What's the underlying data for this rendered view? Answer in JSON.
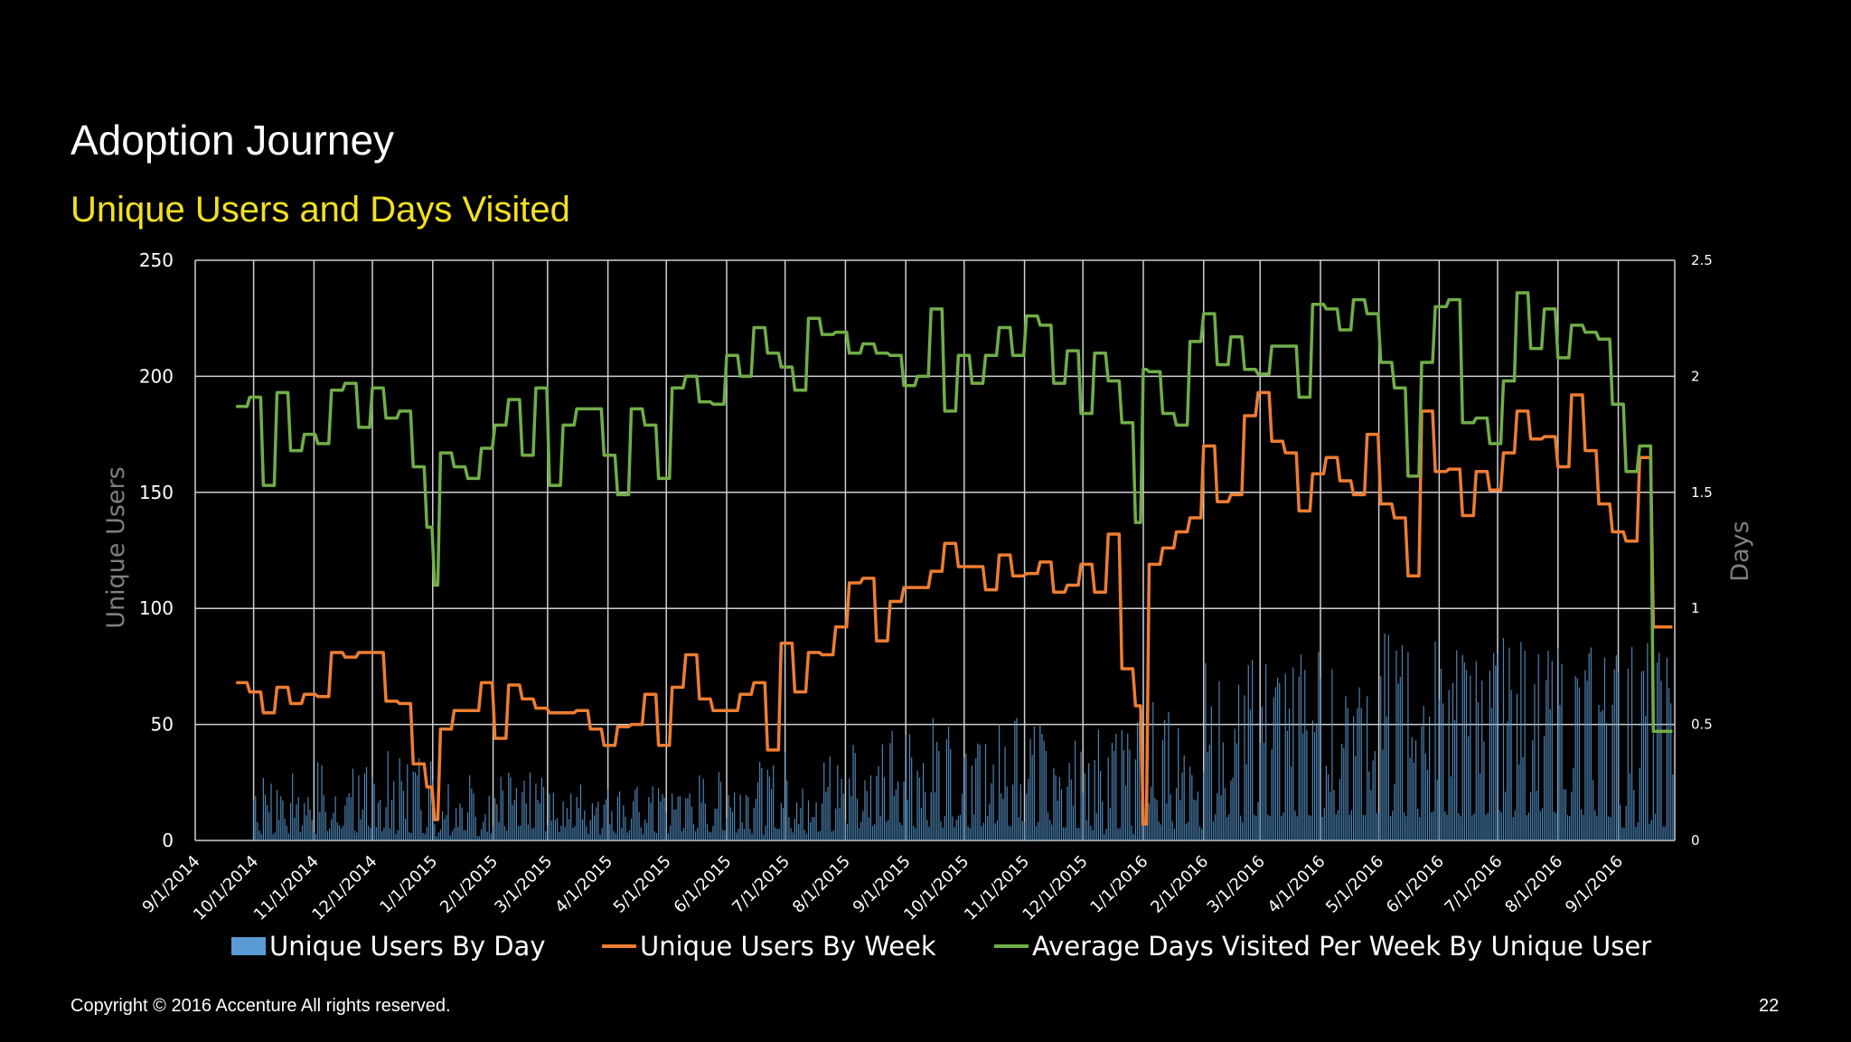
{
  "slide": {
    "title": "Adoption Journey",
    "subtitle": "Unique Users and Days Visited",
    "footer": "Copyright © 2016 Accenture  All rights reserved.",
    "page_number": "22"
  },
  "colors": {
    "background": "#000000",
    "title": "#ffffff",
    "subtitle": "#f2e11d",
    "grid": "#cfcfcf",
    "axis_title": "#7f7f7f",
    "bars": "#5b9bd5",
    "weekly_line": "#ed7d31",
    "days_line": "#70ad47"
  },
  "chart_data": {
    "type": "bar",
    "secondary_type": "line",
    "x_tick_labels": [
      "9/1/2014",
      "10/1/2014",
      "11/1/2014",
      "12/1/2014",
      "1/1/2015",
      "2/1/2015",
      "3/1/2015",
      "4/1/2015",
      "5/1/2015",
      "6/1/2015",
      "7/1/2015",
      "8/1/2015",
      "9/1/2015",
      "10/1/2015",
      "11/1/2015",
      "12/1/2015",
      "1/1/2016",
      "2/1/2016",
      "3/1/2016",
      "4/1/2016",
      "5/1/2016",
      "6/1/2016",
      "7/1/2016",
      "8/1/2016",
      "9/1/2016"
    ],
    "x_range": [
      "2014-09-01",
      "2016-09-30"
    ],
    "y_left": {
      "label": "Unique Users",
      "ylim": [
        0,
        250
      ],
      "ticks": [
        "0",
        "50",
        "100",
        "150",
        "200",
        "250"
      ]
    },
    "y_right": {
      "label": "Days",
      "ylim": [
        0,
        2.5
      ],
      "ticks": [
        "0",
        "0.5",
        "1",
        "1.5",
        "2",
        "2.5"
      ]
    },
    "grid": true,
    "legend_position": "bottom",
    "legend": [
      "Unique Users By Day",
      "Unique Users By Week",
      "Average Days Visited Per Week By Unique User"
    ],
    "series": [
      {
        "name": "Unique Users By Day",
        "type": "bar",
        "axis": "left",
        "monthly_range": [
          {
            "month": "2014-09",
            "min": 0,
            "max": 0
          },
          {
            "month": "2014-10",
            "min": 5,
            "max": 30
          },
          {
            "month": "2014-11",
            "min": 5,
            "max": 36
          },
          {
            "month": "2014-12",
            "min": 5,
            "max": 40
          },
          {
            "month": "2015-01",
            "min": 3,
            "max": 30
          },
          {
            "month": "2015-02",
            "min": 5,
            "max": 30
          },
          {
            "month": "2015-03",
            "min": 5,
            "max": 28
          },
          {
            "month": "2015-04",
            "min": 5,
            "max": 24
          },
          {
            "month": "2015-05",
            "min": 5,
            "max": 30
          },
          {
            "month": "2015-06",
            "min": 5,
            "max": 35
          },
          {
            "month": "2015-07",
            "min": 5,
            "max": 40
          },
          {
            "month": "2015-08",
            "min": 10,
            "max": 50
          },
          {
            "month": "2015-09",
            "min": 10,
            "max": 55
          },
          {
            "month": "2015-10",
            "min": 10,
            "max": 55
          },
          {
            "month": "2015-11",
            "min": 10,
            "max": 58
          },
          {
            "month": "2015-12",
            "min": 5,
            "max": 52
          },
          {
            "month": "2016-01",
            "min": 10,
            "max": 72
          },
          {
            "month": "2016-02",
            "min": 15,
            "max": 80
          },
          {
            "month": "2016-03",
            "min": 20,
            "max": 85
          },
          {
            "month": "2016-04",
            "min": 20,
            "max": 88
          },
          {
            "month": "2016-05",
            "min": 20,
            "max": 90
          },
          {
            "month": "2016-06",
            "min": 20,
            "max": 85
          },
          {
            "month": "2016-07",
            "min": 20,
            "max": 88
          },
          {
            "month": "2016-08",
            "min": 20,
            "max": 86
          },
          {
            "month": "2016-09",
            "min": 10,
            "max": 88
          }
        ]
      },
      {
        "name": "Unique Users By Week",
        "type": "line",
        "axis": "left",
        "points": [
          [
            "2014-09-22",
            68
          ],
          [
            "2014-09-29",
            64
          ],
          [
            "2014-10-06",
            55
          ],
          [
            "2014-10-13",
            66
          ],
          [
            "2014-10-20",
            59
          ],
          [
            "2014-10-27",
            63
          ],
          [
            "2014-11-03",
            62
          ],
          [
            "2014-11-10",
            81
          ],
          [
            "2014-11-17",
            79
          ],
          [
            "2014-11-24",
            81
          ],
          [
            "2014-12-01",
            81
          ],
          [
            "2014-12-08",
            60
          ],
          [
            "2014-12-15",
            59
          ],
          [
            "2014-12-22",
            33
          ],
          [
            "2014-12-29",
            23
          ],
          [
            "2015-01-02",
            9
          ],
          [
            "2015-01-05",
            48
          ],
          [
            "2015-01-12",
            56
          ],
          [
            "2015-01-19",
            56
          ],
          [
            "2015-01-26",
            68
          ],
          [
            "2015-02-02",
            44
          ],
          [
            "2015-02-09",
            67
          ],
          [
            "2015-02-16",
            61
          ],
          [
            "2015-02-23",
            57
          ],
          [
            "2015-03-02",
            55
          ],
          [
            "2015-03-09",
            55
          ],
          [
            "2015-03-16",
            56
          ],
          [
            "2015-03-23",
            48
          ],
          [
            "2015-03-30",
            41
          ],
          [
            "2015-04-06",
            49
          ],
          [
            "2015-04-13",
            50
          ],
          [
            "2015-04-20",
            63
          ],
          [
            "2015-04-27",
            41
          ],
          [
            "2015-05-04",
            66
          ],
          [
            "2015-05-11",
            80
          ],
          [
            "2015-05-18",
            61
          ],
          [
            "2015-05-25",
            56
          ],
          [
            "2015-06-01",
            56
          ],
          [
            "2015-06-08",
            63
          ],
          [
            "2015-06-15",
            68
          ],
          [
            "2015-06-22",
            39
          ],
          [
            "2015-06-29",
            85
          ],
          [
            "2015-07-06",
            64
          ],
          [
            "2015-07-13",
            81
          ],
          [
            "2015-07-20",
            80
          ],
          [
            "2015-07-27",
            92
          ],
          [
            "2015-08-03",
            111
          ],
          [
            "2015-08-10",
            113
          ],
          [
            "2015-08-17",
            86
          ],
          [
            "2015-08-24",
            103
          ],
          [
            "2015-08-31",
            109
          ],
          [
            "2015-09-07",
            109
          ],
          [
            "2015-09-14",
            116
          ],
          [
            "2015-09-21",
            128
          ],
          [
            "2015-09-28",
            118
          ],
          [
            "2015-10-05",
            118
          ],
          [
            "2015-10-12",
            108
          ],
          [
            "2015-10-19",
            123
          ],
          [
            "2015-10-26",
            114
          ],
          [
            "2015-11-02",
            115
          ],
          [
            "2015-11-09",
            120
          ],
          [
            "2015-11-16",
            107
          ],
          [
            "2015-11-23",
            110
          ],
          [
            "2015-11-30",
            119
          ],
          [
            "2015-12-07",
            107
          ],
          [
            "2015-12-14",
            132
          ],
          [
            "2015-12-21",
            74
          ],
          [
            "2015-12-28",
            58
          ],
          [
            "2016-01-01",
            7
          ],
          [
            "2016-01-04",
            119
          ],
          [
            "2016-01-11",
            126
          ],
          [
            "2016-01-18",
            133
          ],
          [
            "2016-01-25",
            139
          ],
          [
            "2016-02-01",
            170
          ],
          [
            "2016-02-08",
            146
          ],
          [
            "2016-02-15",
            149
          ],
          [
            "2016-02-22",
            183
          ],
          [
            "2016-02-29",
            193
          ],
          [
            "2016-03-07",
            172
          ],
          [
            "2016-03-14",
            167
          ],
          [
            "2016-03-21",
            142
          ],
          [
            "2016-03-28",
            158
          ],
          [
            "2016-04-04",
            165
          ],
          [
            "2016-04-11",
            155
          ],
          [
            "2016-04-18",
            149
          ],
          [
            "2016-04-25",
            175
          ],
          [
            "2016-05-02",
            145
          ],
          [
            "2016-05-09",
            139
          ],
          [
            "2016-05-16",
            114
          ],
          [
            "2016-05-23",
            185
          ],
          [
            "2016-05-30",
            159
          ],
          [
            "2016-06-06",
            160
          ],
          [
            "2016-06-13",
            140
          ],
          [
            "2016-06-20",
            159
          ],
          [
            "2016-06-27",
            151
          ],
          [
            "2016-07-04",
            167
          ],
          [
            "2016-07-11",
            185
          ],
          [
            "2016-07-18",
            173
          ],
          [
            "2016-07-25",
            174
          ],
          [
            "2016-08-01",
            161
          ],
          [
            "2016-08-08",
            192
          ],
          [
            "2016-08-15",
            168
          ],
          [
            "2016-08-22",
            145
          ],
          [
            "2016-08-29",
            133
          ],
          [
            "2016-09-05",
            129
          ],
          [
            "2016-09-12",
            165
          ],
          [
            "2016-09-19",
            92
          ],
          [
            "2016-09-26",
            92
          ]
        ]
      },
      {
        "name": "Average Days Visited Per Week By Unique User",
        "type": "line",
        "axis": "right",
        "points": [
          [
            "2014-09-22",
            1.87
          ],
          [
            "2014-09-29",
            1.91
          ],
          [
            "2014-10-06",
            1.53
          ],
          [
            "2014-10-13",
            1.93
          ],
          [
            "2014-10-20",
            1.68
          ],
          [
            "2014-10-27",
            1.75
          ],
          [
            "2014-11-03",
            1.71
          ],
          [
            "2014-11-10",
            1.94
          ],
          [
            "2014-11-17",
            1.97
          ],
          [
            "2014-11-24",
            1.78
          ],
          [
            "2014-12-01",
            1.95
          ],
          [
            "2014-12-08",
            1.82
          ],
          [
            "2014-12-15",
            1.85
          ],
          [
            "2014-12-22",
            1.61
          ],
          [
            "2014-12-29",
            1.35
          ],
          [
            "2015-01-02",
            1.1
          ],
          [
            "2015-01-05",
            1.67
          ],
          [
            "2015-01-12",
            1.61
          ],
          [
            "2015-01-19",
            1.56
          ],
          [
            "2015-01-26",
            1.69
          ],
          [
            "2015-02-02",
            1.79
          ],
          [
            "2015-02-09",
            1.9
          ],
          [
            "2015-02-16",
            1.66
          ],
          [
            "2015-02-23",
            1.95
          ],
          [
            "2015-03-02",
            1.53
          ],
          [
            "2015-03-09",
            1.79
          ],
          [
            "2015-03-16",
            1.86
          ],
          [
            "2015-03-23",
            1.86
          ],
          [
            "2015-03-30",
            1.66
          ],
          [
            "2015-04-06",
            1.49
          ],
          [
            "2015-04-13",
            1.86
          ],
          [
            "2015-04-20",
            1.79
          ],
          [
            "2015-04-27",
            1.56
          ],
          [
            "2015-05-04",
            1.95
          ],
          [
            "2015-05-11",
            2.0
          ],
          [
            "2015-05-18",
            1.89
          ],
          [
            "2015-05-25",
            1.88
          ],
          [
            "2015-06-01",
            2.09
          ],
          [
            "2015-06-08",
            2.0
          ],
          [
            "2015-06-15",
            2.21
          ],
          [
            "2015-06-22",
            2.1
          ],
          [
            "2015-06-29",
            2.04
          ],
          [
            "2015-07-06",
            1.94
          ],
          [
            "2015-07-13",
            2.25
          ],
          [
            "2015-07-20",
            2.18
          ],
          [
            "2015-07-27",
            2.19
          ],
          [
            "2015-08-03",
            2.1
          ],
          [
            "2015-08-10",
            2.14
          ],
          [
            "2015-08-17",
            2.1
          ],
          [
            "2015-08-24",
            2.09
          ],
          [
            "2015-08-31",
            1.96
          ],
          [
            "2015-09-07",
            2.0
          ],
          [
            "2015-09-14",
            2.29
          ],
          [
            "2015-09-21",
            1.85
          ],
          [
            "2015-09-28",
            2.09
          ],
          [
            "2015-10-05",
            1.97
          ],
          [
            "2015-10-12",
            2.09
          ],
          [
            "2015-10-19",
            2.21
          ],
          [
            "2015-10-26",
            2.09
          ],
          [
            "2015-11-02",
            2.26
          ],
          [
            "2015-11-09",
            2.22
          ],
          [
            "2015-11-16",
            1.97
          ],
          [
            "2015-11-23",
            2.11
          ],
          [
            "2015-11-30",
            1.84
          ],
          [
            "2015-12-07",
            2.1
          ],
          [
            "2015-12-14",
            1.98
          ],
          [
            "2015-12-21",
            1.8
          ],
          [
            "2015-12-28",
            1.37
          ],
          [
            "2016-01-01",
            2.03
          ],
          [
            "2016-01-04",
            2.02
          ],
          [
            "2016-01-11",
            1.84
          ],
          [
            "2016-01-18",
            1.79
          ],
          [
            "2016-01-25",
            2.15
          ],
          [
            "2016-02-01",
            2.27
          ],
          [
            "2016-02-08",
            2.05
          ],
          [
            "2016-02-15",
            2.17
          ],
          [
            "2016-02-22",
            2.03
          ],
          [
            "2016-02-29",
            2.01
          ],
          [
            "2016-03-07",
            2.13
          ],
          [
            "2016-03-14",
            2.13
          ],
          [
            "2016-03-21",
            1.91
          ],
          [
            "2016-03-28",
            2.31
          ],
          [
            "2016-04-04",
            2.29
          ],
          [
            "2016-04-11",
            2.2
          ],
          [
            "2016-04-18",
            2.33
          ],
          [
            "2016-04-25",
            2.27
          ],
          [
            "2016-05-02",
            2.06
          ],
          [
            "2016-05-09",
            1.95
          ],
          [
            "2016-05-16",
            1.57
          ],
          [
            "2016-05-23",
            2.06
          ],
          [
            "2016-05-30",
            2.3
          ],
          [
            "2016-06-06",
            2.33
          ],
          [
            "2016-06-13",
            1.8
          ],
          [
            "2016-06-20",
            1.82
          ],
          [
            "2016-06-27",
            1.71
          ],
          [
            "2016-07-04",
            1.98
          ],
          [
            "2016-07-11",
            2.36
          ],
          [
            "2016-07-18",
            2.12
          ],
          [
            "2016-07-25",
            2.29
          ],
          [
            "2016-08-01",
            2.08
          ],
          [
            "2016-08-08",
            2.22
          ],
          [
            "2016-08-15",
            2.19
          ],
          [
            "2016-08-22",
            2.16
          ],
          [
            "2016-08-29",
            1.88
          ],
          [
            "2016-09-05",
            1.59
          ],
          [
            "2016-09-12",
            1.7
          ],
          [
            "2016-09-19",
            0.47
          ],
          [
            "2016-09-26",
            0.47
          ]
        ]
      }
    ]
  }
}
